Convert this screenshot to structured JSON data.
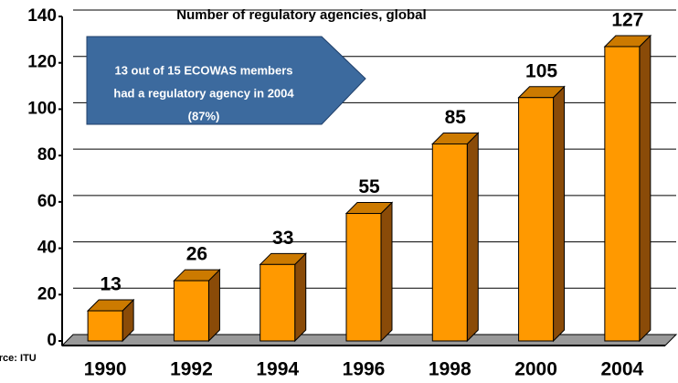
{
  "chart_data": {
    "type": "bar3d",
    "title": "Number of regulatory agencies, global",
    "categories": [
      "1990",
      "1992",
      "1994",
      "1996",
      "1998",
      "2000",
      "2004"
    ],
    "values": [
      13,
      26,
      33,
      55,
      85,
      105,
      127
    ],
    "color": "#ff9900",
    "ylim": [
      0,
      140
    ],
    "yticks": [
      0,
      20,
      40,
      60,
      80,
      100,
      120,
      140
    ],
    "grid": true,
    "annotation": [
      "13 out of 15 ECOWAS members",
      "had a regulatory agency in 2004",
      "(87%)"
    ],
    "source": "Source: ITU"
  }
}
